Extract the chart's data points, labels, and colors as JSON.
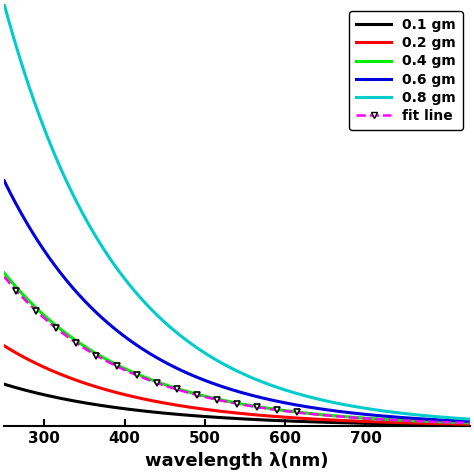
{
  "title": "",
  "xlabel": "wavelength λ(nm)",
  "ylabel": "",
  "xlim": [
    250,
    830
  ],
  "ylim": [
    0,
    5.5
  ],
  "xticks": [
    300,
    400,
    500,
    600,
    700
  ],
  "colors": [
    "#000000",
    "#ff0000",
    "#00ee00",
    "#0000dd",
    "#00cccc"
  ],
  "legend_labels": [
    "0.1 gm",
    "0.2 gm",
    "0.4 gm",
    "0.6 gm",
    "0.8 gm",
    "fit line"
  ],
  "fit_color": "#ff00ff",
  "background_color": "#ffffff",
  "amplitudes": [
    0.55,
    1.05,
    2.0,
    3.2,
    5.5
  ],
  "decay_constants": [
    0.0058,
    0.0062,
    0.0065,
    0.0067,
    0.007
  ],
  "fit_amplitude": 1.95,
  "fit_decay": 0.0065,
  "lambda0": 250,
  "marker_start": 265,
  "marker_end": 640,
  "marker_step": 25
}
